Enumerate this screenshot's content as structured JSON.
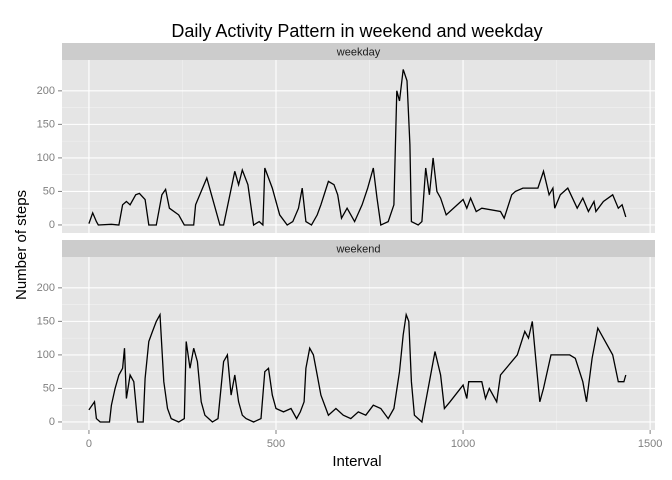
{
  "chart_data": {
    "type": "line",
    "title": "Daily Activity Pattern in weekend and weekday",
    "xlabel": "Interval",
    "ylabel": "Number of steps",
    "xlim": [
      -72,
      1513
    ],
    "ylim": [
      -12,
      246
    ],
    "xticks": [
      0,
      500,
      1000,
      1500
    ],
    "yticks": [
      0,
      50,
      100,
      150,
      200
    ],
    "grid": true,
    "facets": true,
    "series": [
      {
        "name": "weekday",
        "color": "#000000",
        "x": [
          0,
          10,
          20,
          25,
          60,
          80,
          90,
          100,
          110,
          125,
          135,
          150,
          160,
          180,
          195,
          205,
          215,
          240,
          255,
          270,
          280,
          285,
          300,
          315,
          330,
          350,
          360,
          375,
          390,
          400,
          410,
          425,
          440,
          455,
          465,
          470,
          490,
          510,
          530,
          545,
          560,
          570,
          580,
          595,
          610,
          620,
          640,
          655,
          665,
          675,
          690,
          710,
          730,
          745,
          760,
          770,
          780,
          800,
          815,
          823,
          830,
          840,
          850,
          858,
          862,
          880,
          890,
          900,
          910,
          920,
          930,
          940,
          955,
          1000,
          1010,
          1020,
          1035,
          1050,
          1100,
          1110,
          1130,
          1140,
          1160,
          1200,
          1215,
          1230,
          1240,
          1245,
          1260,
          1280,
          1305,
          1320,
          1335,
          1350,
          1355,
          1375,
          1400,
          1415,
          1425,
          1435
        ],
        "values": [
          2,
          18,
          5,
          0,
          1,
          0,
          30,
          35,
          30,
          45,
          47,
          38,
          0,
          0,
          45,
          53,
          25,
          15,
          0,
          0,
          0,
          30,
          50,
          70,
          40,
          0,
          0,
          40,
          80,
          60,
          82,
          60,
          0,
          5,
          0,
          85,
          55,
          15,
          0,
          5,
          25,
          55,
          5,
          0,
          15,
          30,
          65,
          60,
          45,
          10,
          25,
          5,
          30,
          55,
          85,
          40,
          0,
          5,
          30,
          200,
          185,
          232,
          215,
          120,
          5,
          0,
          5,
          85,
          45,
          100,
          50,
          40,
          15,
          38,
          25,
          40,
          20,
          25,
          20,
          10,
          45,
          50,
          55,
          55,
          80,
          45,
          55,
          25,
          45,
          55,
          25,
          40,
          20,
          35,
          20,
          35,
          45,
          25,
          30,
          12
        ]
      },
      {
        "name": "weekend",
        "color": "#000000",
        "x": [
          0,
          15,
          20,
          30,
          55,
          60,
          70,
          80,
          90,
          95,
          100,
          110,
          120,
          130,
          145,
          150,
          160,
          170,
          180,
          190,
          200,
          210,
          220,
          240,
          255,
          260,
          270,
          280,
          290,
          300,
          310,
          320,
          330,
          345,
          360,
          370,
          380,
          390,
          400,
          410,
          420,
          440,
          460,
          470,
          480,
          490,
          500,
          520,
          540,
          555,
          565,
          575,
          580,
          590,
          600,
          610,
          620,
          640,
          660,
          680,
          700,
          720,
          740,
          760,
          780,
          800,
          815,
          830,
          840,
          848,
          855,
          862,
          870,
          890,
          910,
          925,
          940,
          950,
          965,
          1000,
          1010,
          1015,
          1050,
          1060,
          1070,
          1090,
          1100,
          1145,
          1165,
          1175,
          1185,
          1195,
          1205,
          1215,
          1235,
          1285,
          1300,
          1320,
          1330,
          1345,
          1360,
          1400,
          1415,
          1430,
          1435
        ],
        "values": [
          18,
          30,
          5,
          0,
          0,
          25,
          50,
          70,
          80,
          110,
          35,
          70,
          60,
          0,
          0,
          65,
          120,
          135,
          150,
          160,
          60,
          20,
          5,
          0,
          5,
          120,
          80,
          110,
          90,
          30,
          10,
          5,
          0,
          5,
          90,
          100,
          40,
          70,
          30,
          10,
          5,
          0,
          5,
          75,
          80,
          40,
          20,
          15,
          20,
          5,
          15,
          30,
          80,
          110,
          100,
          70,
          40,
          10,
          20,
          10,
          5,
          15,
          10,
          25,
          20,
          5,
          20,
          75,
          130,
          160,
          150,
          60,
          10,
          0,
          60,
          105,
          70,
          20,
          30,
          55,
          35,
          60,
          60,
          35,
          50,
          30,
          70,
          100,
          135,
          125,
          150,
          90,
          30,
          50,
          100,
          100,
          95,
          60,
          30,
          95,
          140,
          100,
          60,
          60,
          70
        ]
      }
    ]
  }
}
